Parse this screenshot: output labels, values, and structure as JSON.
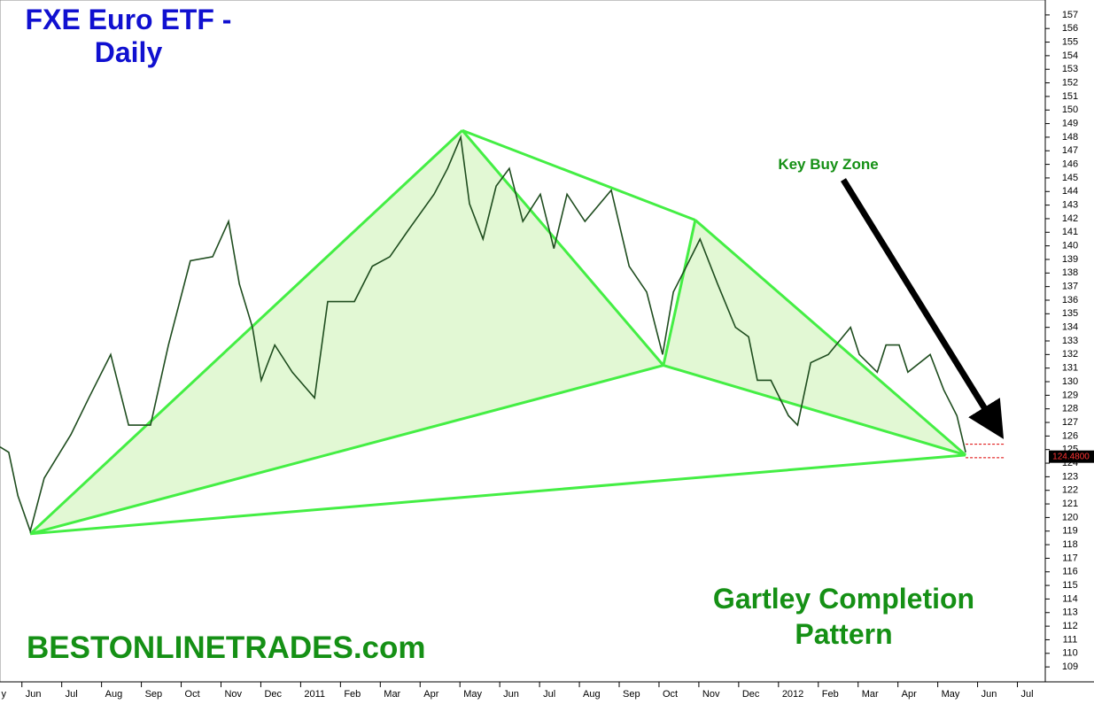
{
  "chart_data": {
    "type": "line",
    "title": "FXE Euro ETF - Daily",
    "watermark": "BESTONLINETRADES.com",
    "pattern_label": "Gartley Completion Pattern",
    "annotation": "Key Buy Zone",
    "x": [
      0.45,
      0.67,
      0.9,
      1.21,
      1.56,
      2.23,
      2.68,
      3.23,
      3.68,
      4.23,
      4.68,
      5.23,
      5.79,
      6.19,
      6.46,
      6.79,
      7.01,
      7.35,
      7.79,
      8.35,
      8.68,
      9.35,
      9.8,
      10.24,
      10.69,
      11.35,
      11.69,
      12.02,
      12.24,
      12.58,
      12.91,
      13.24,
      13.58,
      14.02,
      14.36,
      14.69,
      15.14,
      15.8,
      16.25,
      16.69,
      17.09,
      17.36,
      17.69,
      18.03,
      18.47,
      18.92,
      19.25,
      19.47,
      19.81,
      20.25,
      20.48,
      20.81,
      21.25,
      21.81,
      22.03,
      22.48,
      22.7,
      23.03,
      23.25,
      23.81,
      24.15,
      24.48,
      24.7
    ],
    "values": [
      125.2,
      124.8,
      121.6,
      119,
      122.9,
      126.1,
      128.8,
      132,
      126.8,
      126.8,
      132.7,
      138.9,
      139.2,
      141.8,
      137.2,
      134,
      130.1,
      132.7,
      130.7,
      128.8,
      135.9,
      135.9,
      138.5,
      139.2,
      141.1,
      143.8,
      145.7,
      148,
      143.1,
      140.5,
      144.4,
      145.7,
      141.8,
      143.8,
      139.8,
      143.8,
      141.8,
      144.1,
      138.5,
      136.6,
      132,
      136.6,
      138.5,
      140.5,
      137.2,
      134,
      133.3,
      130.1,
      130.1,
      127.5,
      126.8,
      131.4,
      132,
      134,
      132,
      130.7,
      132.7,
      132.7,
      130.7,
      132,
      129.4,
      127.5,
      124.8
    ],
    "color": "#1f4d1f",
    "pattern": {
      "x": [
        1.21,
        12.06,
        17.11,
        17.91,
        24.7
      ],
      "values": [
        118.8,
        148.5,
        131.2,
        141.9,
        124.6
      ],
      "color": "#44ee44"
    },
    "last_price": {
      "value": 124.48,
      "label": "124.4800"
    },
    "buy_zone": [
      124.4,
      125.4
    ],
    "xlim": [
      0.45,
      26.7
    ],
    "xticks": [
      {
        "value": 0,
        "label": "y"
      },
      {
        "value": 1,
        "label": "Jun"
      },
      {
        "value": 2,
        "label": "Jul"
      },
      {
        "value": 3,
        "label": "Aug"
      },
      {
        "value": 4,
        "label": "Sep"
      },
      {
        "value": 5,
        "label": "Oct"
      },
      {
        "value": 6,
        "label": "Nov"
      },
      {
        "value": 7,
        "label": "Dec"
      },
      {
        "value": 8,
        "label": "2011"
      },
      {
        "value": 9,
        "label": "Feb"
      },
      {
        "value": 10,
        "label": "Mar"
      },
      {
        "value": 11,
        "label": "Apr"
      },
      {
        "value": 12,
        "label": "May"
      },
      {
        "value": 13,
        "label": "Jun"
      },
      {
        "value": 14,
        "label": "Jul"
      },
      {
        "value": 15,
        "label": "Aug"
      },
      {
        "value": 16,
        "label": "Sep"
      },
      {
        "value": 17,
        "label": "Oct"
      },
      {
        "value": 18,
        "label": "Nov"
      },
      {
        "value": 19,
        "label": "Dec"
      },
      {
        "value": 20,
        "label": "2012"
      },
      {
        "value": 21,
        "label": "Feb"
      },
      {
        "value": 22,
        "label": "Mar"
      },
      {
        "value": 23,
        "label": "Apr"
      },
      {
        "value": 24,
        "label": "May"
      },
      {
        "value": 25,
        "label": "Jun"
      },
      {
        "value": 26,
        "label": "Jul"
      }
    ],
    "ylim": [
      107.9,
      158.1
    ],
    "yticks": [
      109,
      110,
      111,
      112,
      113,
      114,
      115,
      116,
      117,
      118,
      119,
      120,
      121,
      122,
      123,
      124,
      125,
      126,
      127,
      128,
      129,
      130,
      131,
      132,
      133,
      134,
      135,
      136,
      137,
      138,
      139,
      140,
      141,
      142,
      143,
      144,
      145,
      146,
      147,
      148,
      149,
      150,
      151,
      152,
      153,
      154,
      155,
      156,
      157
    ]
  }
}
